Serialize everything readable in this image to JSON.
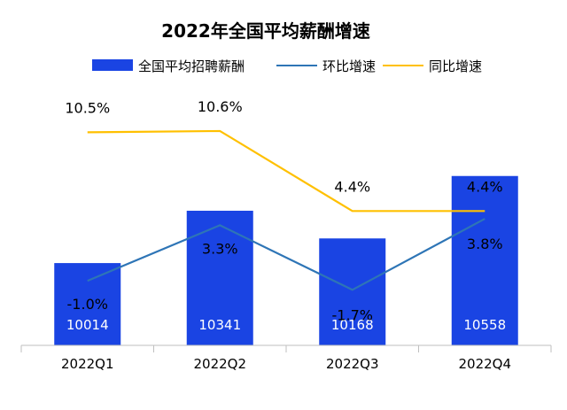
{
  "chart_data": {
    "type": "bar",
    "title": "2022年全国平均薪酬增速",
    "categories": [
      "2022Q1",
      "2022Q2",
      "2022Q3",
      "2022Q4"
    ],
    "bar_series": {
      "name": "全国平均招聘薪酬",
      "values": [
        10014,
        10341,
        10168,
        10558
      ],
      "labels": [
        "10014",
        "10341",
        "10168",
        "10558"
      ],
      "color": "#1a44e3"
    },
    "line_series": [
      {
        "name": "环比增速",
        "values": [
          -1.0,
          3.3,
          -1.7,
          3.8
        ],
        "labels": [
          "-1.0%",
          "3.3%",
          "-1.7%",
          "3.8%"
        ],
        "color": "#2e75b6"
      },
      {
        "name": "同比增速",
        "values": [
          10.5,
          10.6,
          4.4,
          4.4
        ],
        "labels": [
          "10.5%",
          "10.6%",
          "4.4%",
          "4.4%"
        ],
        "color": "#ffc000"
      }
    ],
    "legend_position": "top",
    "grid": false
  }
}
